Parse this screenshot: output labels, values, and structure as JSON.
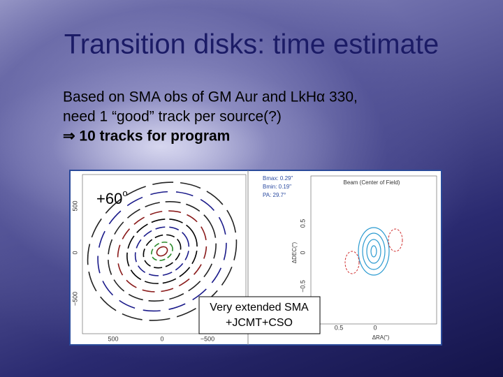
{
  "title": "Transition disks: time estimate",
  "body": {
    "lines": [
      "Based on SMA obs of GM Aur and LkHα 330,",
      "need 1 “good” track per source(?)",
      "⇒ 10 tracks for program"
    ]
  },
  "figure": {
    "angle_label": "+60",
    "angle_unit": "o",
    "caption": [
      "Very extended SMA",
      "+JCMT+CSO"
    ],
    "uv_plot": {
      "y_ticks": [
        "500",
        "0",
        "−500"
      ],
      "x_ticks": [
        "500",
        "0",
        "−500"
      ]
    },
    "beam_plot": {
      "title": "Beam (Center of Field)",
      "beam_info": [
        "Bmax: 0.29\"",
        "Bmin: 0.19\"",
        "PA: 29.7°"
      ],
      "y_ticks": [
        "0.5",
        "0",
        "−0.5"
      ],
      "x_ticks": [
        "0.5",
        "0"
      ],
      "x_label": "ΔRA(\")",
      "y_label": "ΔDEC(\")"
    }
  }
}
